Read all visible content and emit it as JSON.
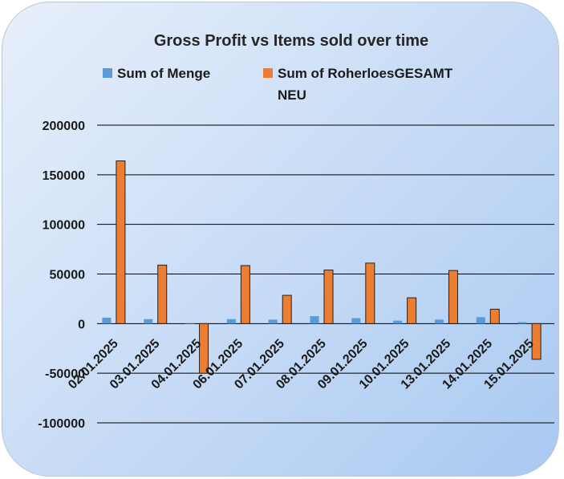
{
  "chart_data": {
    "type": "bar",
    "title": "Gross Profit vs Items sold over time",
    "categories": [
      "02.01.2025",
      "03.01.2025",
      "04.01.2025",
      "06.01.2025",
      "07.01.2025",
      "08.01.2025",
      "09.01.2025",
      "10.01.2025",
      "13.01.2025",
      "14.01.2025",
      "15.01.2025"
    ],
    "series": [
      {
        "name": "Sum of Menge",
        "color": "#5b9bd5",
        "values": [
          6000,
          4500,
          0,
          4500,
          4000,
          7500,
          5500,
          3000,
          4000,
          6500,
          1500
        ]
      },
      {
        "name": "Sum of RoherloesGESAMT NEU",
        "color": "#ed7d31",
        "values": [
          164000,
          59000,
          -50000,
          58500,
          28500,
          54000,
          61000,
          26000,
          53500,
          14500,
          -36000
        ]
      }
    ],
    "legend_labels": {
      "menge": "Sum of Menge",
      "roh_line1": "Sum of RoherloesGESAMT",
      "roh_line2": "NEU"
    },
    "ylim": [
      -100000,
      200000
    ],
    "yticks": [
      "200000",
      "150000",
      "100000",
      "50000",
      "0",
      "-50000",
      "-100000"
    ],
    "legend_position": "top",
    "grid": true
  }
}
